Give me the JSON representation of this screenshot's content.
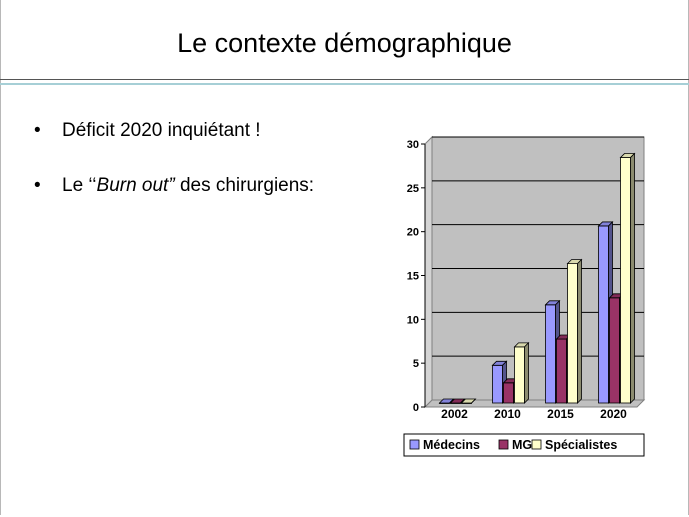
{
  "slide": {
    "title": "Le contexte démographique",
    "bullets": [
      {
        "text": "Déficit 2020 inquiétant !"
      },
      {
        "pre": "Le ‘‘",
        "em": "Burn out”",
        "post": " des chirurgiens:"
      }
    ]
  },
  "chart_data": {
    "type": "bar",
    "categories": [
      "2002",
      "2010",
      "2015",
      "2020"
    ],
    "series": [
      {
        "name": "Médecins",
        "values": [
          0,
          4.3,
          11.2,
          20.2
        ],
        "color": "#9999ff"
      },
      {
        "name": "MG",
        "values": [
          0,
          2.3,
          7.3,
          12
        ],
        "color": "#993366"
      },
      {
        "name": "Spécialistes",
        "values": [
          0,
          6.4,
          15.9,
          28
        ],
        "color": "#ffffcc"
      }
    ],
    "ylim": [
      0,
      30
    ],
    "yticks": [
      0,
      5,
      10,
      15,
      20,
      25,
      30
    ],
    "grid": true,
    "legend": "bottom",
    "plot_background": "#c0c0c0"
  }
}
